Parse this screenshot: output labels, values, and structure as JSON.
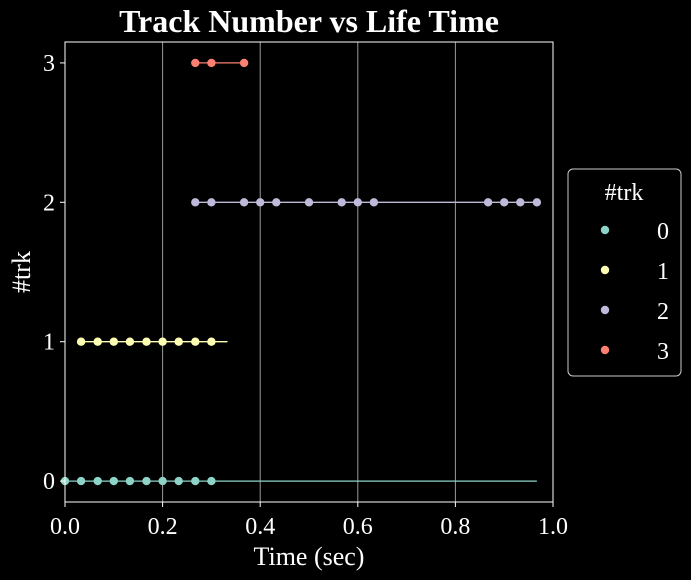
{
  "chart_data": {
    "type": "line",
    "title": "Track Number vs Life Time",
    "xlabel": "Time (sec)",
    "ylabel": "#trk",
    "xlim": [
      0.0,
      1.0
    ],
    "ylim": [
      -0.15,
      3.15
    ],
    "xticks": [
      0.0,
      0.2,
      0.4,
      0.6,
      0.8,
      1.0
    ],
    "xtick_labels": [
      "0.0",
      "0.2",
      "0.4",
      "0.6",
      "0.8",
      "1.0"
    ],
    "yticks": [
      0,
      1,
      2,
      3
    ],
    "ytick_labels": [
      "0",
      "1",
      "2",
      "3"
    ],
    "grid": "vertical",
    "legend": {
      "title": "#trk",
      "placement": "right"
    },
    "series": [
      {
        "name": "0",
        "color": "#8dd3c7",
        "y": 0,
        "line_x": [
          0.0,
          0.967
        ],
        "points_x": [
          0.0,
          0.033,
          0.067,
          0.1,
          0.133,
          0.167,
          0.2,
          0.233,
          0.267,
          0.3
        ]
      },
      {
        "name": "1",
        "color": "#ffffb3",
        "y": 1,
        "line_x": [
          0.033,
          0.333
        ],
        "points_x": [
          0.033,
          0.067,
          0.1,
          0.133,
          0.167,
          0.2,
          0.233,
          0.267,
          0.3
        ]
      },
      {
        "name": "2",
        "color": "#bebada",
        "y": 2,
        "line_x": [
          0.267,
          0.967
        ],
        "points_x": [
          0.267,
          0.3,
          0.367,
          0.4,
          0.433,
          0.5,
          0.567,
          0.6,
          0.633,
          0.867,
          0.9,
          0.933,
          0.967
        ]
      },
      {
        "name": "3",
        "color": "#fb8072",
        "y": 3,
        "line_x": [
          0.267,
          0.367
        ],
        "points_x": [
          0.267,
          0.3,
          0.367
        ]
      }
    ]
  }
}
